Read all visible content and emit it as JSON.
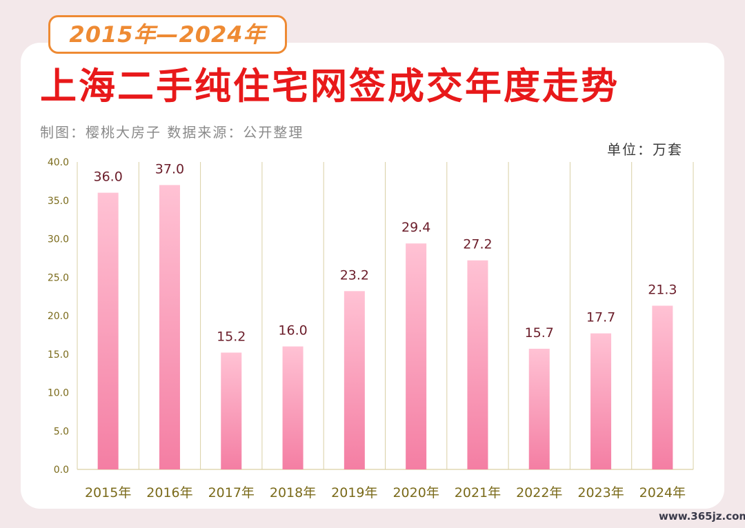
{
  "header": {
    "year_range": "2015年—2024年",
    "title": "上海二手纯住宅网签成交年度走势",
    "credit": "制图：樱桃大房子   数据来源：公开整理",
    "unit": "单位：万套"
  },
  "watermark": "www.365jz.com",
  "colors": {
    "title": "#e8191a",
    "pill_border": "#ee8a33",
    "bar_top": "#ffc2d4",
    "bar_bottom": "#f47ea3",
    "value_label": "#6b1d2a",
    "tick_label": "#7a6a1a",
    "grid": "#d9cfa4"
  },
  "chart_data": {
    "type": "bar",
    "categories": [
      "2015年",
      "2016年",
      "2017年",
      "2018年",
      "2019年",
      "2020年",
      "2021年",
      "2022年",
      "2023年",
      "2024年"
    ],
    "values": [
      36.0,
      37.0,
      15.2,
      16.0,
      23.2,
      29.4,
      27.2,
      15.7,
      17.7,
      21.3
    ],
    "value_labels": [
      "36.0",
      "37.0",
      "15.2",
      "16.0",
      "23.2",
      "29.4",
      "27.2",
      "15.7",
      "17.7",
      "21.3"
    ],
    "y_ticks": [
      "0.0",
      "5.0",
      "10.0",
      "15.0",
      "20.0",
      "25.0",
      "30.0",
      "35.0",
      "40.0"
    ],
    "ylim": [
      0,
      40
    ],
    "title": "上海二手纯住宅网签成交年度走势",
    "xlabel": "",
    "ylabel": "",
    "grid": "vertical separators between categories",
    "legend": "none"
  }
}
